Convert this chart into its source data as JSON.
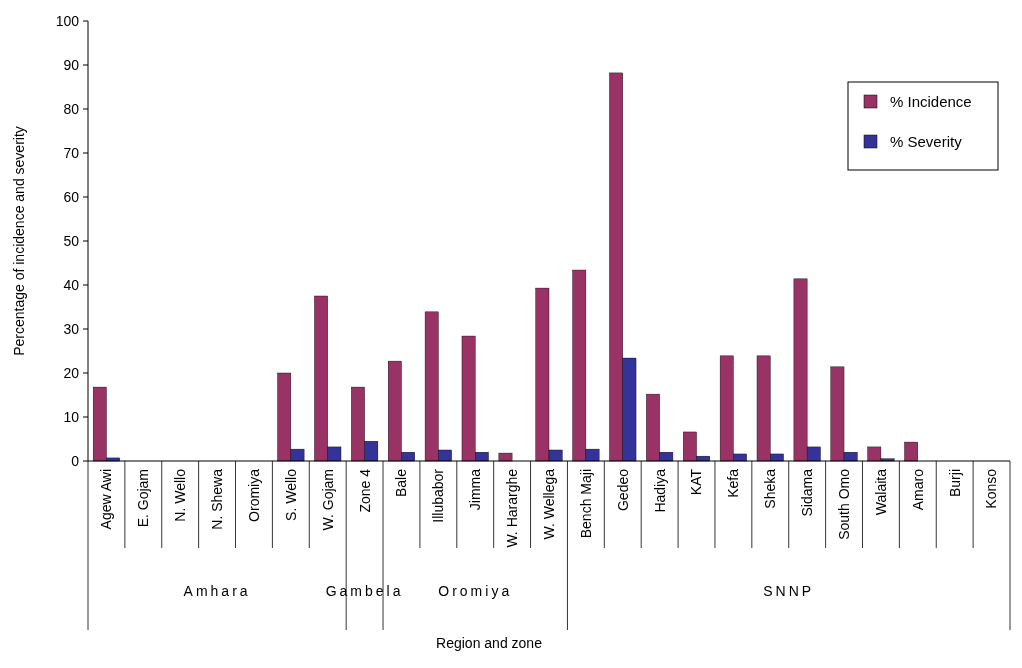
{
  "chart_data": {
    "type": "bar",
    "ylabel": "Percentage of incidence and severity",
    "categories": [
      "Agew Awi",
      "E. Gojam",
      "N. Wello",
      "N. Shewa",
      "Oromiya",
      "S. Wello",
      "W. Gojam",
      "Zone 4",
      "Bale",
      "Illubabor",
      "Jimma",
      "W. Hararghe",
      "W. Wellega",
      "Bench Maji",
      "Gedeo",
      "Hadiya",
      "KAT",
      "Kefa",
      "Sheka",
      "Sidama",
      "South Omo",
      "Walaita",
      "Amaro",
      "Burji",
      "Konso"
    ],
    "series": [
      {
        "name": "% Incidence",
        "color": "#993366",
        "values": [
          16.8,
          0,
          0,
          0,
          0,
          20,
          37.5,
          16.8,
          22.7,
          33.9,
          28.4,
          1.8,
          39.3,
          43.4,
          88.2,
          15.2,
          6.6,
          23.9,
          23.9,
          41.4,
          21.4,
          3.2,
          4.3,
          0,
          0
        ]
      },
      {
        "name": "% Severity",
        "color": "#333399",
        "values": [
          0.7,
          0,
          0,
          0,
          0,
          2.7,
          3.2,
          4.5,
          2,
          2.5,
          2,
          0,
          2.5,
          2.7,
          23.4,
          2,
          1.1,
          1.6,
          1.6,
          3.2,
          2,
          0.5,
          0,
          0,
          0
        ]
      }
    ],
    "ylim": [
      0,
      100
    ],
    "yticks": [
      0,
      10,
      20,
      30,
      40,
      50,
      60,
      70,
      80,
      90,
      100
    ],
    "grid": false,
    "legend": "top right",
    "annotations": [
      "Amhara",
      "Gambela",
      "Oromiya",
      "SNNP",
      "Region and zone"
    ]
  }
}
